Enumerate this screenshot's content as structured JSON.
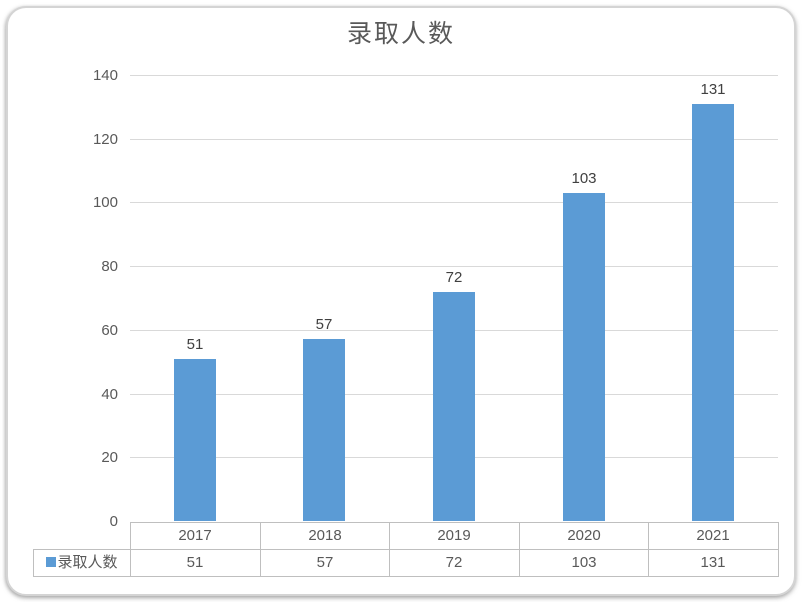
{
  "chart_data": {
    "type": "bar",
    "title": "录取人数",
    "categories": [
      "2017",
      "2018",
      "2019",
      "2020",
      "2021"
    ],
    "series": [
      {
        "name": "录取人数",
        "values": [
          51,
          57,
          72,
          103,
          131
        ]
      }
    ],
    "data_labels": [
      "51",
      "57",
      "72",
      "103",
      "131"
    ],
    "y_ticks": [
      0,
      20,
      40,
      60,
      80,
      100,
      120,
      140
    ],
    "ylim": [
      0,
      140
    ],
    "grid": true,
    "data_table": true,
    "legend_position": "table-left-key",
    "colors": {
      "bar": "#5b9bd5",
      "gridline": "#d9d9d9",
      "table_border": "#bfbfbf",
      "axis_text": "#595959",
      "data_label_text": "#404040",
      "title_text": "#595959",
      "frame_border": "#d4d4d4",
      "background": "#ffffff"
    }
  }
}
